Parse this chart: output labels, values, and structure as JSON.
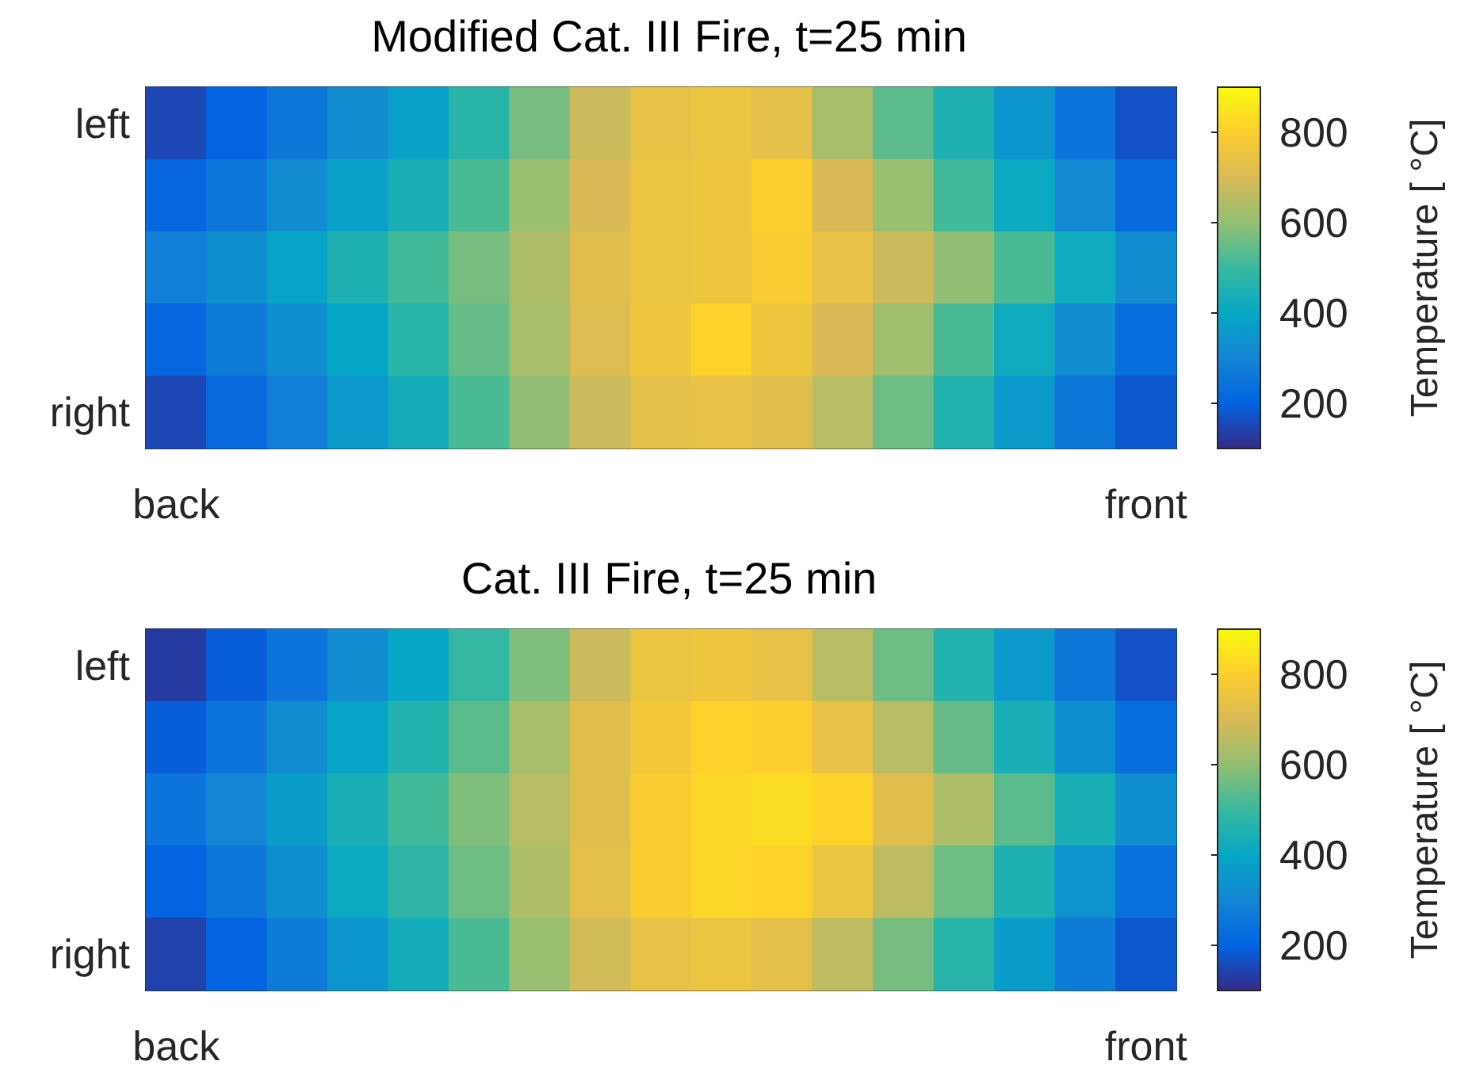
{
  "chart_data": [
    {
      "type": "heatmap",
      "title": "Modified Cat. III Fire, t=25 min",
      "clabel": "Temperature [ °C]",
      "clim": [
        100,
        900
      ],
      "cticks": [
        200,
        400,
        600,
        800
      ],
      "categories": [
        "back",
        null,
        null,
        null,
        null,
        null,
        null,
        null,
        null,
        null,
        null,
        null,
        null,
        null,
        null,
        null,
        "front"
      ],
      "y_categories": [
        "left",
        null,
        null,
        null,
        "right"
      ],
      "cells": [
        [
          150,
          200,
          260,
          320,
          380,
          470,
          570,
          680,
          740,
          750,
          730,
          630,
          540,
          450,
          350,
          250,
          170
        ],
        [
          210,
          260,
          320,
          380,
          440,
          520,
          610,
          700,
          750,
          760,
          800,
          700,
          610,
          510,
          410,
          310,
          220
        ],
        [
          280,
          330,
          390,
          450,
          510,
          570,
          640,
          720,
          750,
          760,
          790,
          740,
          680,
          600,
          520,
          420,
          320
        ],
        [
          210,
          270,
          330,
          400,
          470,
          550,
          630,
          710,
          760,
          810,
          760,
          700,
          620,
          520,
          420,
          320,
          230
        ],
        [
          150,
          220,
          280,
          360,
          430,
          520,
          600,
          680,
          730,
          740,
          720,
          650,
          560,
          460,
          360,
          260,
          180
        ]
      ]
    },
    {
      "type": "heatmap",
      "title": "Cat. III Fire, t=25 min",
      "clabel": "Temperature [ °C]",
      "clim": [
        100,
        900
      ],
      "cticks": [
        200,
        400,
        600,
        800
      ],
      "categories": [
        "back",
        null,
        null,
        null,
        null,
        null,
        null,
        null,
        null,
        null,
        null,
        null,
        null,
        null,
        null,
        null,
        "front"
      ],
      "y_categories": [
        "left",
        null,
        null,
        null,
        "right"
      ],
      "cells": [
        [
          130,
          190,
          250,
          320,
          400,
          490,
          580,
          680,
          750,
          760,
          740,
          650,
          560,
          460,
          360,
          260,
          170
        ],
        [
          190,
          250,
          320,
          390,
          460,
          540,
          630,
          720,
          770,
          810,
          800,
          740,
          650,
          550,
          440,
          330,
          230
        ],
        [
          250,
          300,
          370,
          440,
          510,
          580,
          650,
          720,
          790,
          820,
          830,
          810,
          720,
          640,
          540,
          440,
          330
        ],
        [
          200,
          260,
          330,
          410,
          480,
          560,
          640,
          730,
          790,
          820,
          810,
          750,
          660,
          560,
          450,
          340,
          240
        ],
        [
          140,
          200,
          270,
          350,
          430,
          520,
          610,
          690,
          740,
          750,
          730,
          660,
          570,
          470,
          370,
          270,
          180
        ]
      ]
    }
  ]
}
